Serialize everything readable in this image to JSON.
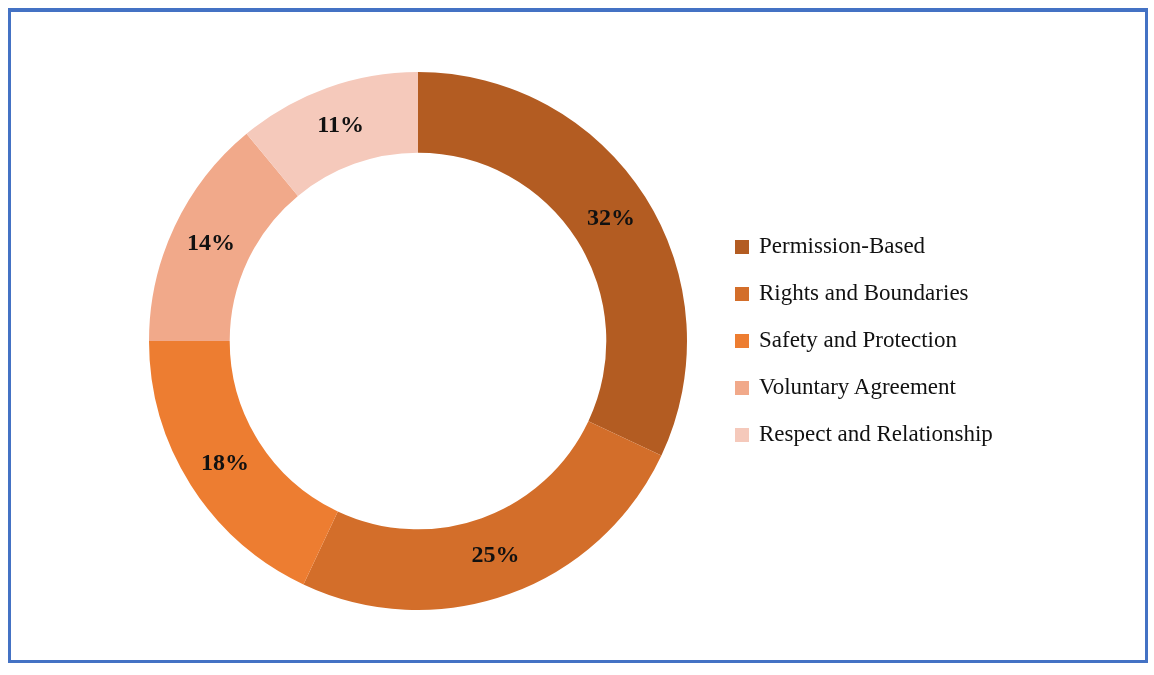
{
  "chart_data": {
    "type": "donut",
    "categories": [
      "Permission-Based",
      "Rights and Boundaries",
      "Safety and Protection",
      "Voluntary Agreement",
      "Respect and Relationship"
    ],
    "values": [
      32,
      25,
      18,
      14,
      11
    ],
    "value_labels": [
      "32%",
      "25%",
      "18%",
      "14%",
      "11%"
    ],
    "colors": [
      "#b35c22",
      "#d36e2a",
      "#ed7d31",
      "#f1a98a",
      "#f5c9bb"
    ],
    "legend": "right"
  }
}
